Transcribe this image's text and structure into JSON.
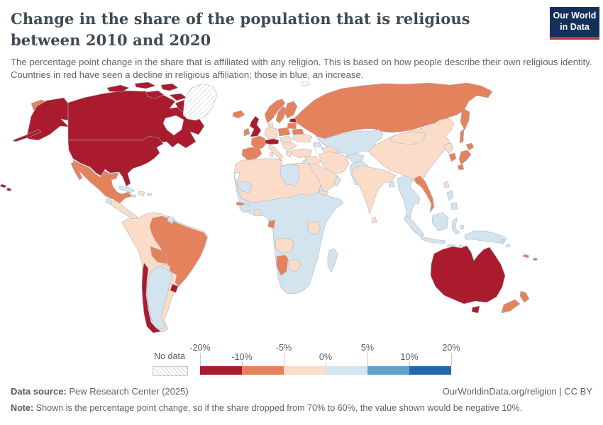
{
  "header": {
    "title": "Change in the share of the population that is religious between 2010 and 2020",
    "subtitle": "The percentage point change in the share that is affiliated with any religion. This is based on how people describe their own religious identity. Countries in red have seen a decline in religious affiliation; those in blue, an increase.",
    "logo": {
      "line1": "Our World",
      "line2": "in Data",
      "bg_color": "#12305a",
      "accent_color": "#c9353a"
    }
  },
  "legend": {
    "no_data_label": "No data",
    "ticks": [
      {
        "label": "-20%",
        "pos": 0,
        "row": "top"
      },
      {
        "label": "-10%",
        "pos": 16.67,
        "row": "bottom"
      },
      {
        "label": "-5%",
        "pos": 33.33,
        "row": "top"
      },
      {
        "label": "0%",
        "pos": 50,
        "row": "bottom"
      },
      {
        "label": "5%",
        "pos": 66.67,
        "row": "top"
      },
      {
        "label": "10%",
        "pos": 83.33,
        "row": "bottom"
      },
      {
        "label": "20%",
        "pos": 100,
        "row": "top"
      }
    ]
  },
  "map": {
    "bins": [
      {
        "id": "decline_10_20",
        "label": "-20% to -10%",
        "color": "#aa1b2e"
      },
      {
        "id": "decline_5_10",
        "label": "-10% to -5%",
        "color": "#e5825e"
      },
      {
        "id": "decline_0_5",
        "label": "-5% to 0%",
        "color": "#fbdcc8"
      },
      {
        "id": "increase_0_5",
        "label": "0% to 5%",
        "color": "#d4e4ef"
      },
      {
        "id": "increase_5_10",
        "label": "5% to 10%",
        "color": "#5fa1c9"
      },
      {
        "id": "increase_10_20",
        "label": "10% to 20%",
        "color": "#2467a9"
      }
    ],
    "country_bins": {
      "united-states": "decline_10_20",
      "canada": "decline_10_20",
      "united-kingdom": "decline_10_20",
      "switzerland-austria": "decline_10_20",
      "estonia": "decline_10_20",
      "chile": "decline_10_20",
      "uruguay": "decline_10_20",
      "australia": "decline_10_20",
      "russia": "decline_5_10",
      "mexico": "decline_5_10",
      "brazil": "decline_5_10",
      "bolivia": "decline_5_10",
      "france": "decline_5_10",
      "iberia": "decline_5_10",
      "ireland": "decline_5_10",
      "iceland": "decline_5_10",
      "norway": "decline_5_10",
      "sweden": "decline_5_10",
      "finland": "decline_5_10",
      "poland": "decline_5_10",
      "latvia-lithuania": "decline_5_10",
      "belarus": "decline_5_10",
      "japan": "decline_5_10",
      "south-korea": "decline_5_10",
      "vietnam": "decline_5_10",
      "new-zealand": "decline_5_10",
      "namibia": "decline_5_10",
      "gabon": "decline_5_10",
      "gambia": "decline_5_10",
      "new-caledonia": "decline_5_10",
      "fiji": "decline_5_10",
      "china": "decline_0_5",
      "mongolia": "decline_0_5",
      "north-korea": "decline_0_5",
      "taiwan": "decline_0_5",
      "hainan": "decline_0_5",
      "india": "decline_0_5",
      "sri-lanka": "decline_0_5",
      "germany": "decline_0_5",
      "denmark": "decline_0_5",
      "central-europe": "decline_0_5",
      "ukraine": "decline_0_5",
      "balkans": "decline_0_5",
      "italy": "decline_0_5",
      "greece": "decline_0_5",
      "turkey": "decline_0_5",
      "syria-iraq": "decline_0_5",
      "iran": "decline_0_5",
      "arabian-peninsula": "decline_0_5",
      "turkmenistan": "decline_0_5",
      "sahara-sahel": "decline_0_5",
      "eritrea": "decline_0_5",
      "tanzania": "decline_0_5",
      "angola": "decline_0_5",
      "botswana": "decline_0_5",
      "ghana": "decline_0_5",
      "northern-south-america": "decline_0_5",
      "paraguay": "decline_0_5",
      "central-america": "decline_0_5",
      "hispaniola": "decline_0_5",
      "jamaica": "decline_0_5",
      "puerto-rico": "decline_0_5",
      "argentina": "increase_0_5",
      "cuba": "increase_0_5",
      "guatemala": "increase_0_5",
      "guyana": "increase_0_5",
      "kazakhstan-central-asia": "increase_0_5",
      "caucasus": "increase_0_5",
      "israel-jordan": "increase_0_5",
      "oman": "increase_0_5",
      "afghanistan": "increase_0_5",
      "pakistan": "increase_0_5",
      "bangladesh": "increase_0_5",
      "mainland-southeast-asia": "increase_0_5",
      "sumatra": "increase_0_5",
      "java": "increase_0_5",
      "borneo": "increase_0_5",
      "sulawesi": "increase_0_5",
      "lesser-sunda": "increase_0_5",
      "timor": "increase_0_5",
      "moluccas": "increase_0_5",
      "new-guinea": "increase_0_5",
      "philippines": "increase_0_5",
      "solomon-islands": "increase_0_5",
      "libya": "increase_0_5",
      "mauritania": "increase_0_5",
      "guinea": "increase_0_5",
      "sub-saharan-africa": "increase_0_5",
      "madagascar": "increase_0_5"
    }
  },
  "chart_data": {
    "type": "heatmap",
    "subtype": "world-choropleth",
    "title": "Change in the share of the population that is religious between 2010 and 2020",
    "unit": "percentage points",
    "legend_position": "bottom",
    "value_bins": [
      {
        "range": "-20% to -10%",
        "color": "#aa1b2e"
      },
      {
        "range": "-10% to -5%",
        "color": "#e5825e"
      },
      {
        "range": "-5% to 0%",
        "color": "#fbdcc8"
      },
      {
        "range": "0% to 5%",
        "color": "#d4e4ef"
      },
      {
        "range": "5% to 10%",
        "color": "#5fa1c9"
      },
      {
        "range": "10% to 20%",
        "color": "#2467a9"
      }
    ],
    "countries": {
      "-20% to -10%": [
        "United States",
        "Canada",
        "Australia",
        "United Kingdom",
        "Switzerland",
        "Austria",
        "Estonia",
        "Chile",
        "Uruguay"
      ],
      "-10% to -5%": [
        "Russia",
        "Mexico",
        "Brazil",
        "Bolivia",
        "France",
        "Spain",
        "Portugal",
        "Ireland",
        "Iceland",
        "Norway",
        "Sweden",
        "Finland",
        "Poland",
        "Latvia",
        "Lithuania",
        "Belarus",
        "Japan",
        "South Korea",
        "Vietnam",
        "New Zealand",
        "Namibia",
        "Gabon",
        "The Gambia"
      ],
      "-5% to 0%": [
        "China",
        "Mongolia",
        "India",
        "Germany",
        "Denmark",
        "Italy",
        "Greece",
        "Turkey",
        "Ukraine",
        "Romania",
        "Hungary",
        "Iran",
        "Iraq",
        "Saudi Arabia",
        "Egypt",
        "Morocco",
        "Algeria",
        "Mali",
        "Niger",
        "Chad",
        "Sudan",
        "Tanzania",
        "Angola",
        "Botswana",
        "Ghana",
        "Colombia",
        "Venezuela",
        "Ecuador",
        "Peru",
        "Paraguay",
        "Honduras",
        "Nicaragua",
        "Panama",
        "Dominican Republic",
        "Haiti",
        "Jamaica",
        "North Korea",
        "Taiwan",
        "Sri Lanka",
        "Turkmenistan"
      ],
      "0% to 5%": [
        "Argentina",
        "Cuba",
        "Guatemala",
        "Guyana",
        "Kazakhstan",
        "Uzbekistan",
        "Kyrgyzstan",
        "Tajikistan",
        "Afghanistan",
        "Pakistan",
        "Bangladesh",
        "Myanmar",
        "Thailand",
        "Laos",
        "Cambodia",
        "Malaysia",
        "Indonesia",
        "Philippines",
        "Papua New Guinea",
        "Libya",
        "Mauritania",
        "Guinea",
        "Nigeria",
        "Cameroon",
        "DR Congo",
        "Ethiopia",
        "Kenya",
        "Mozambique",
        "Zambia",
        "Zimbabwe",
        "South Africa",
        "Madagascar",
        "Georgia",
        "Israel",
        "Jordan",
        "Oman",
        "Nepal"
      ],
      "5% to 10%": [],
      "10% to 20%": []
    },
    "no_data": [
      "Greenland",
      "Western Sahara",
      "Svalbard"
    ]
  },
  "footer": {
    "source_label": "Data source:",
    "source_value": " Pew Research Center (2025)",
    "cite": "OurWorldinData.org/religion | CC BY",
    "note_label": "Note:",
    "note_value": " Shown is the percentage point change, so if the share dropped from 70% to 60%, the value shown would be negative 10%."
  }
}
